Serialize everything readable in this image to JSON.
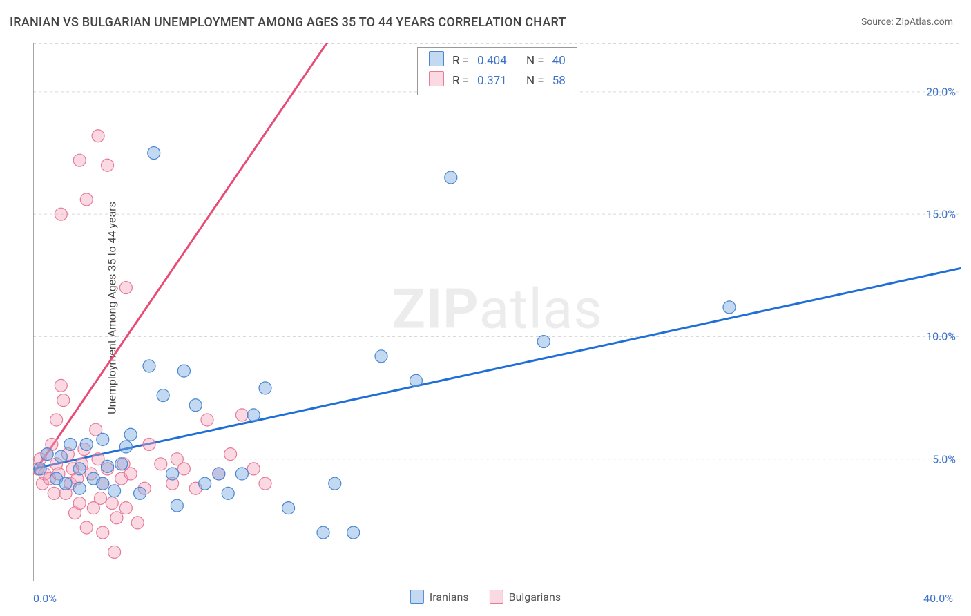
{
  "title": "IRANIAN VS BULGARIAN UNEMPLOYMENT AMONG AGES 35 TO 44 YEARS CORRELATION CHART",
  "source": "Source: ZipAtlas.com",
  "y_axis_label": "Unemployment Among Ages 35 to 44 years",
  "watermark": {
    "bold": "ZIP",
    "light": "atlas"
  },
  "colors": {
    "blue_stroke": "#4a86d2",
    "blue_fill": "rgba(120,170,225,0.45)",
    "blue_line": "#1f6fd6",
    "blue_text": "#3c72c8",
    "pink_stroke": "#e77a97",
    "pink_fill": "rgba(245,160,185,0.40)",
    "pink_line": "#e84b76",
    "grid": "#d9d9d9",
    "axis": "#888888",
    "text_muted": "#666666"
  },
  "chart": {
    "type": "scatter",
    "xlim": [
      0,
      40
    ],
    "ylim": [
      0,
      22
    ],
    "x_origin_label": "0.0%",
    "x_max_label": "40.0%",
    "y_ticks": [
      {
        "v": 5,
        "label": "5.0%"
      },
      {
        "v": 10,
        "label": "10.0%"
      },
      {
        "v": 15,
        "label": "15.0%"
      },
      {
        "v": 20,
        "label": "20.0%"
      }
    ],
    "marker_radius": 9,
    "marker_stroke_width": 1.2,
    "trend_line_width": 3,
    "grid_dash": "4 4",
    "regression": {
      "blue": {
        "y_at_x0": 4.6,
        "y_at_xmax": 12.8
      },
      "pink": {
        "y_at_x0": 4.4,
        "y_at_xmax": 60.0
      }
    },
    "series": {
      "iranians": {
        "label": "Iranians",
        "points": [
          [
            0.3,
            4.6
          ],
          [
            0.6,
            5.2
          ],
          [
            1.0,
            4.2
          ],
          [
            1.2,
            5.1
          ],
          [
            1.6,
            5.6
          ],
          [
            1.4,
            4.0
          ],
          [
            2.0,
            4.6
          ],
          [
            2.0,
            3.8
          ],
          [
            2.3,
            5.6
          ],
          [
            2.6,
            4.2
          ],
          [
            3.0,
            5.8
          ],
          [
            3.0,
            4.0
          ],
          [
            3.2,
            4.7
          ],
          [
            3.5,
            3.7
          ],
          [
            3.8,
            4.8
          ],
          [
            4.0,
            5.5
          ],
          [
            4.2,
            6.0
          ],
          [
            4.6,
            3.6
          ],
          [
            5.0,
            8.8
          ],
          [
            5.2,
            17.5
          ],
          [
            5.6,
            7.6
          ],
          [
            6.0,
            4.4
          ],
          [
            6.2,
            3.1
          ],
          [
            6.5,
            8.6
          ],
          [
            7.0,
            7.2
          ],
          [
            7.4,
            4.0
          ],
          [
            8.0,
            4.4
          ],
          [
            8.4,
            3.6
          ],
          [
            9.0,
            4.4
          ],
          [
            9.5,
            6.8
          ],
          [
            10.0,
            7.9
          ],
          [
            11.0,
            3.0
          ],
          [
            12.5,
            2.0
          ],
          [
            13.0,
            4.0
          ],
          [
            13.8,
            2.0
          ],
          [
            15.0,
            9.2
          ],
          [
            16.5,
            8.2
          ],
          [
            18.0,
            16.5
          ],
          [
            22.0,
            9.8
          ],
          [
            30.0,
            11.2
          ]
        ]
      },
      "bulgarians": {
        "label": "Bulgarians",
        "points": [
          [
            0.2,
            4.6
          ],
          [
            0.3,
            5.0
          ],
          [
            0.4,
            4.0
          ],
          [
            0.5,
            4.4
          ],
          [
            0.6,
            5.2
          ],
          [
            0.7,
            4.2
          ],
          [
            0.8,
            5.6
          ],
          [
            0.9,
            3.6
          ],
          [
            1.0,
            6.6
          ],
          [
            1.0,
            4.8
          ],
          [
            1.1,
            4.4
          ],
          [
            1.2,
            8.0
          ],
          [
            1.2,
            15.0
          ],
          [
            1.3,
            7.4
          ],
          [
            1.4,
            3.6
          ],
          [
            1.5,
            5.2
          ],
          [
            1.6,
            4.0
          ],
          [
            1.7,
            4.6
          ],
          [
            1.8,
            2.8
          ],
          [
            1.9,
            4.2
          ],
          [
            2.0,
            17.2
          ],
          [
            2.0,
            3.2
          ],
          [
            2.1,
            4.8
          ],
          [
            2.2,
            5.4
          ],
          [
            2.3,
            15.6
          ],
          [
            2.3,
            2.2
          ],
          [
            2.5,
            4.4
          ],
          [
            2.6,
            3.0
          ],
          [
            2.7,
            6.2
          ],
          [
            2.8,
            18.2
          ],
          [
            2.8,
            5.0
          ],
          [
            2.9,
            3.4
          ],
          [
            3.0,
            4.0
          ],
          [
            3.0,
            2.0
          ],
          [
            3.2,
            4.6
          ],
          [
            3.2,
            17.0
          ],
          [
            3.4,
            3.2
          ],
          [
            3.5,
            1.2
          ],
          [
            3.6,
            2.6
          ],
          [
            3.8,
            4.2
          ],
          [
            3.9,
            4.8
          ],
          [
            4.0,
            3.0
          ],
          [
            4.0,
            12.0
          ],
          [
            4.2,
            4.4
          ],
          [
            4.5,
            2.4
          ],
          [
            4.8,
            3.8
          ],
          [
            5.0,
            5.6
          ],
          [
            5.5,
            4.8
          ],
          [
            6.0,
            4.0
          ],
          [
            6.2,
            5.0
          ],
          [
            6.5,
            4.6
          ],
          [
            7.0,
            3.8
          ],
          [
            7.5,
            6.6
          ],
          [
            8.0,
            4.4
          ],
          [
            8.5,
            5.2
          ],
          [
            9.0,
            6.8
          ],
          [
            9.5,
            4.6
          ],
          [
            10.0,
            4.0
          ]
        ]
      }
    }
  },
  "correlation_box": {
    "rows": [
      {
        "series": "iranians",
        "R_label": "R =",
        "R": "0.404",
        "N_label": "N =",
        "N": "40"
      },
      {
        "series": "bulgarians",
        "R_label": "R =",
        "R": "0.371",
        "N_label": "N =",
        "N": "58"
      }
    ]
  }
}
